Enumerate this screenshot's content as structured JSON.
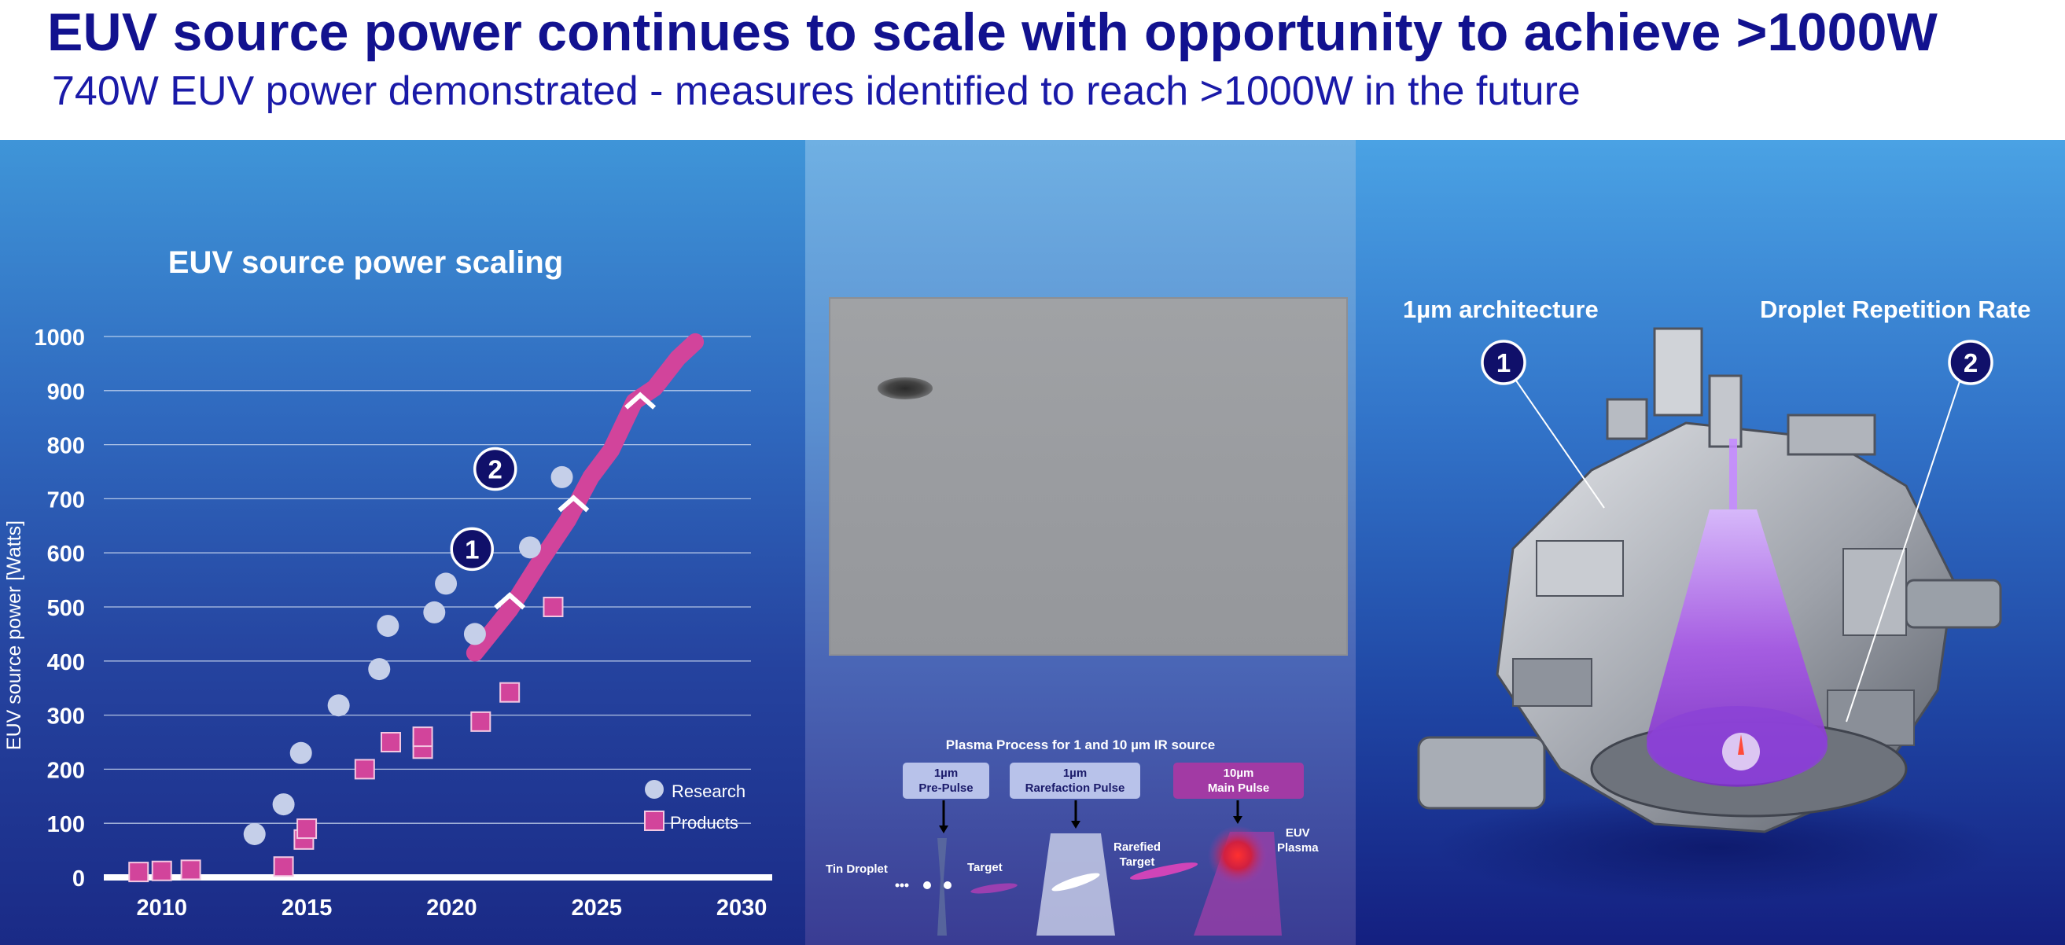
{
  "title": "EUV source power continues to scale with opportunity to achieve >1000W",
  "subtitle": "740W EUV power demonstrated - measures identified to reach >1000W in the future",
  "chart_data": {
    "type": "scatter",
    "title": "EUV source power scaling",
    "ylabel": "EUV source power [Watts]",
    "xlabel": "",
    "xlim": [
      2008,
      2031
    ],
    "ylim": [
      0,
      1000
    ],
    "x_ticks": [
      2010,
      2015,
      2020,
      2025,
      2030
    ],
    "y_ticks": [
      0,
      100,
      200,
      300,
      400,
      500,
      600,
      700,
      800,
      900,
      1000
    ],
    "grid": true,
    "legend_position": "bottom-right",
    "series": [
      {
        "name": "Research",
        "marker": "circle",
        "color": "#c5cfe9",
        "points": [
          [
            2013.2,
            80
          ],
          [
            2014.2,
            135
          ],
          [
            2014.8,
            230
          ],
          [
            2016.1,
            318
          ],
          [
            2017.5,
            385
          ],
          [
            2017.8,
            465
          ],
          [
            2019.4,
            490
          ],
          [
            2019.8,
            543
          ],
          [
            2020.8,
            450
          ],
          [
            2022.7,
            610
          ],
          [
            2023.8,
            740
          ]
        ]
      },
      {
        "name": "Products",
        "marker": "square",
        "color": "#d2449b",
        "points": [
          [
            2009.2,
            10
          ],
          [
            2010,
            12
          ],
          [
            2011,
            14
          ],
          [
            2014.2,
            20
          ],
          [
            2014.9,
            70
          ],
          [
            2015,
            90
          ],
          [
            2017,
            200
          ],
          [
            2017.9,
            250
          ],
          [
            2019,
            238
          ],
          [
            2019,
            260
          ],
          [
            2021,
            288
          ],
          [
            2022,
            342
          ],
          [
            2023.5,
            500
          ]
        ]
      },
      {
        "name": "Roadmap",
        "type": "line",
        "color": "#d2449b",
        "points": [
          [
            2020.8,
            415
          ],
          [
            2022,
            495
          ],
          [
            2023,
            580
          ],
          [
            2024,
            660
          ],
          [
            2024.8,
            740
          ],
          [
            2025.5,
            790
          ],
          [
            2026.3,
            880
          ],
          [
            2027,
            905
          ],
          [
            2027.8,
            960
          ],
          [
            2028.4,
            990
          ]
        ]
      }
    ],
    "roadmap_markers": [
      [
        2022,
        510
      ],
      [
        2024.2,
        690
      ],
      [
        2026.5,
        880
      ]
    ],
    "callouts": [
      {
        "label": "1",
        "x": 2020.7,
        "y": 607
      },
      {
        "label": "2",
        "x": 2021.5,
        "y": 755
      }
    ]
  },
  "process": {
    "title": "Plasma Process for 1 and 10 µm IR source",
    "pulse1": [
      "1µm",
      "Pre-Pulse"
    ],
    "pulse2": [
      "1µm",
      "Rarefaction Pulse"
    ],
    "pulse3": [
      "10µm",
      "Main Pulse"
    ],
    "tin_droplet": "Tin Droplet",
    "target": "Target",
    "rarefied_target": [
      "Rarefied",
      "Target"
    ],
    "euv_plasma": [
      "EUV",
      "Plasma"
    ]
  },
  "architecture": {
    "label_1um": "1µm architecture",
    "label_drr": "Droplet Repetition Rate",
    "callout_1": "1",
    "callout_2": "2"
  }
}
